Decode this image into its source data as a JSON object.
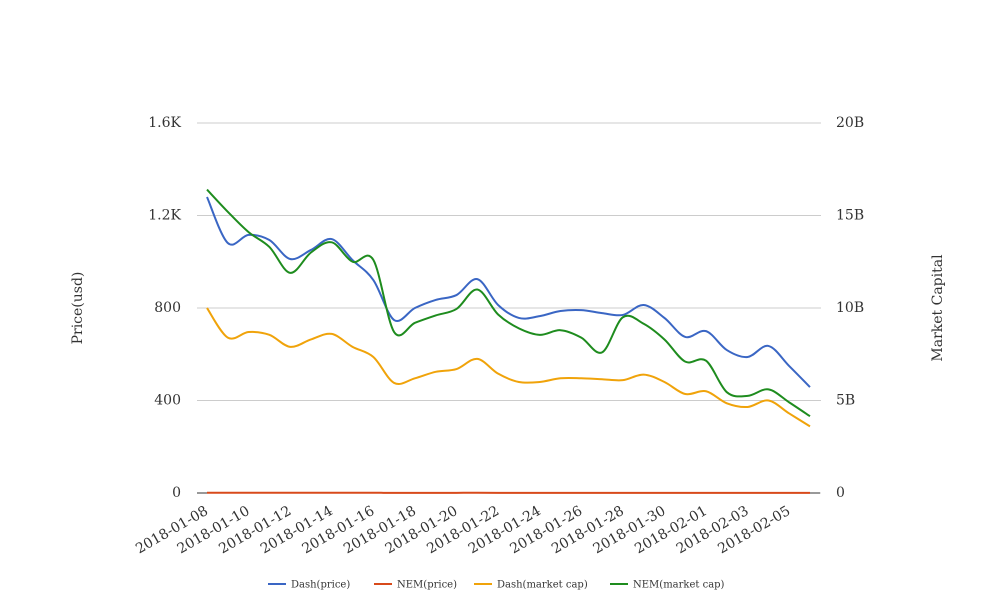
{
  "chart_data": {
    "type": "line",
    "categories": [
      "2018-01-08",
      null,
      "2018-01-10",
      null,
      "2018-01-12",
      null,
      "2018-01-14",
      null,
      "2018-01-16",
      null,
      "2018-01-18",
      null,
      "2018-01-20",
      null,
      "2018-01-22",
      null,
      "2018-01-24",
      null,
      "2018-01-26",
      null,
      "2018-01-28",
      null,
      "2018-01-30",
      null,
      "2018-02-01",
      null,
      "2018-02-03",
      null,
      "2018-02-05",
      null
    ],
    "y_label": "Price(usd)",
    "y2_label": "Market Capital",
    "ylim": [
      0,
      1600
    ],
    "yticks": [
      0,
      400,
      800,
      {
        "value": 1200,
        "label": "1.2K"
      },
      {
        "value": 1600,
        "label": "1.6K"
      }
    ],
    "y2lim": [
      0,
      20000000000
    ],
    "y2ticks": [
      0,
      {
        "value": 5000000000,
        "label": "5B"
      },
      {
        "value": 10000000000,
        "label": "10B"
      },
      {
        "value": 15000000000,
        "label": "15B"
      },
      {
        "value": 20000000000,
        "label": "20B"
      }
    ],
    "grid": true,
    "legend": "bottom",
    "series": [
      {
        "name": "Dash(price)",
        "color": "#3a66c4",
        "values": [
          1280,
          1081,
          1116,
          1094,
          1012,
          1051,
          1098,
          1007,
          921,
          748,
          800,
          835,
          856,
          925,
          813,
          757,
          765,
          787,
          791,
          778,
          770,
          813,
          757,
          675,
          700,
          618,
          588,
          636,
          549,
          458
        ]
      },
      {
        "name": "NEM(price)",
        "color": "#d84a1b",
        "values": [
          1.1,
          1.0,
          1.0,
          1.0,
          0.9,
          0.95,
          0.95,
          0.9,
          0.9,
          0.7,
          0.75,
          0.75,
          0.8,
          0.85,
          0.75,
          0.7,
          0.7,
          0.7,
          0.68,
          0.6,
          0.7,
          0.7,
          0.65,
          0.55,
          0.55,
          0.45,
          0.45,
          0.45,
          0.42,
          0.37
        ]
      },
      {
        "name": "Dash(market cap)",
        "color": "#f0a30a",
        "axis": "y2",
        "values": [
          10000000000,
          8400000000,
          8700000000,
          8550000000,
          7900000000,
          8300000000,
          8600000000,
          7900000000,
          7350000000,
          5950000000,
          6200000000,
          6550000000,
          6700000000,
          7250000000,
          6450000000,
          6000000000,
          6000000000,
          6200000000,
          6200000000,
          6150000000,
          6100000000,
          6400000000,
          6000000000,
          5350000000,
          5500000000,
          4850000000,
          4650000000,
          5000000000,
          4300000000,
          3600000000
        ]
      },
      {
        "name": "NEM(market cap)",
        "color": "#1e8c1e",
        "axis": "y2",
        "values": [
          16400000000,
          15200000000,
          14100000000,
          13300000000,
          11900000000,
          13000000000,
          13550000000,
          12500000000,
          12600000000,
          8700000000,
          9200000000,
          9600000000,
          9950000000,
          11000000000,
          9650000000,
          8900000000,
          8550000000,
          8800000000,
          8400000000,
          7600000000,
          9500000000,
          9150000000,
          8300000000,
          7100000000,
          7150000000,
          5450000000,
          5250000000,
          5600000000,
          4900000000,
          4150000000
        ]
      }
    ]
  }
}
